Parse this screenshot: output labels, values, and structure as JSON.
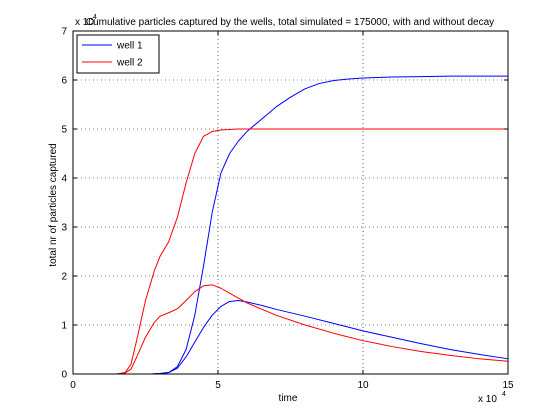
{
  "chart_data": {
    "type": "line",
    "title": "Cumulative particles captured by the wells, total simulated = 175000, with and without decay",
    "xlabel": "time",
    "ylabel": "total nr of particles captured",
    "x_exponent_label": "x 10",
    "x_exponent_power": "4",
    "y_exponent_label": "x 10",
    "y_exponent_power": "4",
    "xlim": [
      0,
      15
    ],
    "ylim": [
      0,
      7
    ],
    "xticks": [
      0,
      5,
      10,
      15
    ],
    "yticks": [
      0,
      1,
      2,
      3,
      4,
      5,
      6,
      7
    ],
    "grid": true,
    "legend_position": "top-left",
    "legend": [
      {
        "label": "well 1",
        "color": "#0000ff"
      },
      {
        "label": "well 2",
        "color": "#ff0000"
      }
    ],
    "series": [
      {
        "name": "well 1",
        "color": "#0000ff",
        "variant": "without decay",
        "x": [
          0,
          2.7,
          3.0,
          3.3,
          3.6,
          3.9,
          4.2,
          4.5,
          4.8,
          5.1,
          5.4,
          5.7,
          6.0,
          6.5,
          7.0,
          7.5,
          8.0,
          8.5,
          9.0,
          9.5,
          10.0,
          11.0,
          12.0,
          13.0,
          14.0,
          15.0
        ],
        "y": [
          0,
          0,
          0.01,
          0.03,
          0.15,
          0.5,
          1.2,
          2.2,
          3.3,
          4.1,
          4.5,
          4.75,
          4.95,
          5.2,
          5.45,
          5.65,
          5.82,
          5.93,
          5.99,
          6.02,
          6.04,
          6.06,
          6.07,
          6.08,
          6.08,
          6.08
        ]
      },
      {
        "name": "well 2",
        "color": "#ff0000",
        "variant": "without decay",
        "x": [
          0,
          1.5,
          1.8,
          2.0,
          2.2,
          2.5,
          2.8,
          3.0,
          3.3,
          3.6,
          3.9,
          4.2,
          4.5,
          4.8,
          5.1,
          5.4,
          5.7,
          6.0,
          7.0,
          8.0,
          10.0,
          12.0,
          15.0
        ],
        "y": [
          0,
          0,
          0.03,
          0.2,
          0.7,
          1.5,
          2.1,
          2.4,
          2.7,
          3.2,
          3.9,
          4.5,
          4.85,
          4.95,
          4.98,
          4.99,
          5.0,
          5.0,
          5.0,
          5.0,
          5.0,
          5.0,
          5.0
        ]
      },
      {
        "name": "well 1",
        "color": "#0000ff",
        "variant": "with decay",
        "x": [
          0,
          2.7,
          3.0,
          3.3,
          3.6,
          3.9,
          4.2,
          4.5,
          4.8,
          5.1,
          5.4,
          5.7,
          6.0,
          6.5,
          7.0,
          8.0,
          9.0,
          10.0,
          11.0,
          12.0,
          13.0,
          14.0,
          15.0
        ],
        "y": [
          0,
          0,
          0.01,
          0.03,
          0.12,
          0.35,
          0.65,
          0.95,
          1.2,
          1.38,
          1.48,
          1.5,
          1.47,
          1.4,
          1.32,
          1.18,
          1.03,
          0.88,
          0.75,
          0.62,
          0.5,
          0.4,
          0.31
        ]
      },
      {
        "name": "well 2",
        "color": "#ff0000",
        "variant": "with decay",
        "x": [
          0,
          1.5,
          1.8,
          2.0,
          2.2,
          2.5,
          2.8,
          3.0,
          3.3,
          3.6,
          3.9,
          4.2,
          4.5,
          4.8,
          5.1,
          5.4,
          5.7,
          6.0,
          7.0,
          8.0,
          9.0,
          10.0,
          11.0,
          12.0,
          13.0,
          14.0,
          15.0
        ],
        "y": [
          0,
          0,
          0.02,
          0.1,
          0.35,
          0.75,
          1.05,
          1.18,
          1.25,
          1.33,
          1.5,
          1.68,
          1.8,
          1.82,
          1.75,
          1.65,
          1.55,
          1.45,
          1.2,
          1.0,
          0.83,
          0.68,
          0.56,
          0.46,
          0.38,
          0.31,
          0.26
        ]
      }
    ]
  }
}
